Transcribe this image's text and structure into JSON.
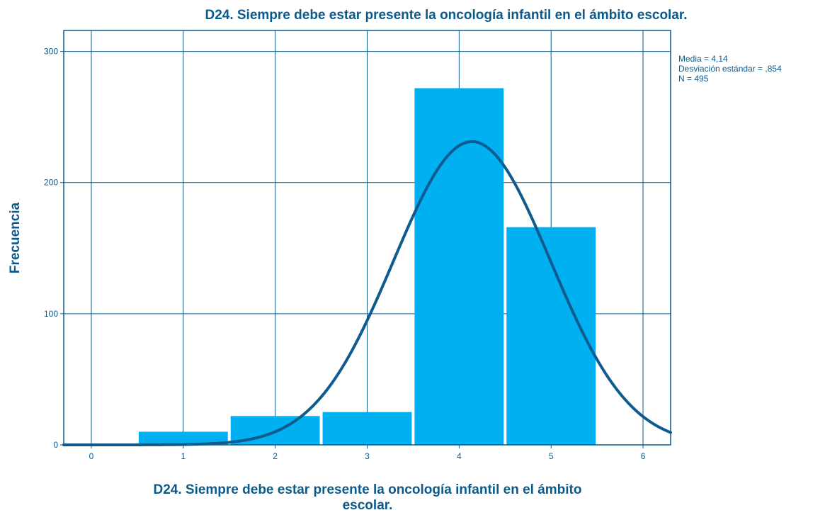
{
  "chart_data": {
    "type": "bar",
    "title": "D24.  Siempre debe estar presente la oncología infantil en el ámbito escolar.",
    "xlabel_lines": [
      "D24.  Siempre debe estar presente la oncología infantil en el ámbito",
      "escolar."
    ],
    "ylabel": "Frecuencia",
    "categories": [
      1,
      2,
      3,
      4,
      5
    ],
    "values": [
      10,
      22,
      25,
      272,
      166
    ],
    "xlim": [
      -0.3,
      6.3
    ],
    "ylim": [
      0,
      316
    ],
    "xticks": [
      "0",
      "1",
      "2",
      "3",
      "4",
      "5",
      "6"
    ],
    "yticks": [
      "0",
      "100",
      "200",
      "300"
    ],
    "grid": true,
    "normal_curve": {
      "mean": 4.14,
      "sd": 0.854,
      "n": 495,
      "bin_width": 1
    },
    "stats": [
      "Media = 4,14",
      "Desviación estándar = ,854",
      "N = 495"
    ],
    "colors": {
      "bar": "#00b0f0",
      "curve": "#0f5b8e",
      "axis": "#0b5a8c",
      "grid": "#0b5a8c"
    }
  }
}
